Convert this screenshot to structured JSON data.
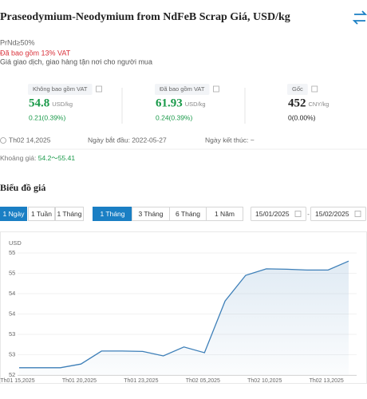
{
  "header": {
    "title": "Praseodymium-Neodymium from NdFeB Scrap Giá, USD/kg",
    "spec": "PrNd≥50%",
    "vat_note": "Đã bao gồm 13% VAT",
    "description": "Giá giao dịch, giao hàng tận nơi cho người mua"
  },
  "prices": [
    {
      "label": "Không bao gồm VAT",
      "value": 54.8,
      "unit": "USD/kg",
      "change": "0.21(0.39%)"
    },
    {
      "label": "Đã bao gồm VAT",
      "value": 61.93,
      "unit": "USD/kg",
      "change": "0.24(0.39%)"
    },
    {
      "label": "Gốc",
      "value": 452,
      "unit": "CNY/kg",
      "change": "0(0.00%)"
    }
  ],
  "info": {
    "date": "Th02 14,2025",
    "start": "Ngày bắt đầu: 2022-05-27",
    "end": "Ngày kết thúc: ~"
  },
  "range": {
    "label": "Khoảng giá:",
    "value": "54.2～55.41"
  },
  "chart_section": {
    "title": "Biểu đồ giá",
    "intervals": [
      "1 Ngày",
      "1 Tuần",
      "1 Tháng"
    ],
    "periods": [
      "1 Tháng",
      "3 Tháng",
      "6 Tháng",
      "1 Năm"
    ],
    "date_from": "15/01/2025",
    "date_separator": "-",
    "date_to": "15/02/2025"
  },
  "chart_data": {
    "type": "line",
    "y_label": "USD",
    "categories": [
      "Th01 15,2025",
      null,
      null,
      "Th01 20,2025",
      null,
      null,
      "Th01 23,2025",
      null,
      null,
      "Th02 05,2025",
      null,
      null,
      "Th02 10,2025",
      null,
      null,
      "Th02 13,2025",
      null
    ],
    "values": [
      52.18,
      52.18,
      52.18,
      52.27,
      52.59,
      52.59,
      52.58,
      52.47,
      52.69,
      52.55,
      53.82,
      54.45,
      54.61,
      54.6,
      54.58,
      54.58,
      54.8
    ],
    "color": "#3d7fb8",
    "ylim": [
      52,
      55
    ],
    "yticks": [
      52,
      {
        "value": 52.5,
        "label": "53"
      },
      53,
      {
        "value": 53.5,
        "label": "54"
      },
      54,
      {
        "value": 54.5,
        "label": "55"
      },
      55
    ],
    "grid": true
  }
}
